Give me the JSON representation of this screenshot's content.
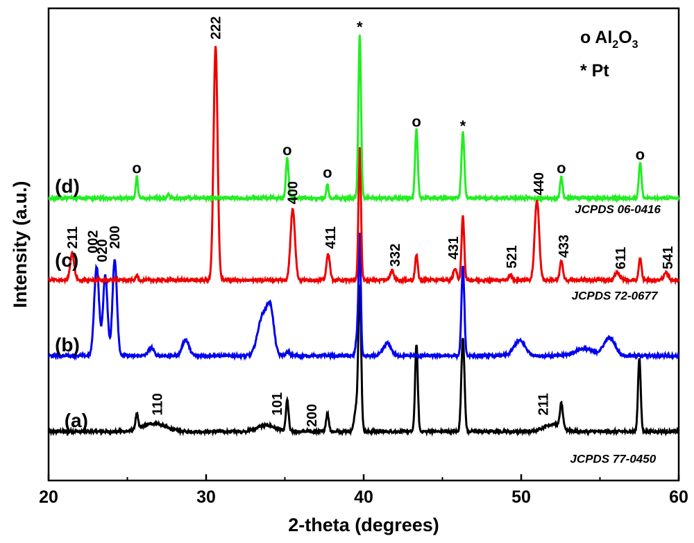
{
  "chart_data": {
    "type": "line",
    "title": "",
    "xlabel": "2-theta (degrees)",
    "ylabel": "Intensity (a.u.)",
    "xlim": [
      20,
      60
    ],
    "xticks": [
      "20",
      "30",
      "40",
      "50",
      "60"
    ],
    "yticks_shown": false,
    "grid": false,
    "legend": {
      "placement": "top-right",
      "entries": [
        {
          "symbol": "o",
          "text": "Al",
          "sub1": "2",
          "mid": "O",
          "sub2": "3"
        },
        {
          "symbol": "*",
          "text": "Pt"
        }
      ]
    },
    "series": [
      {
        "name": "(a)",
        "color": "#000000",
        "baseline": 0,
        "reference": "JCPDS 77-0450",
        "peaks": [
          {
            "x": 25.6,
            "h": 0.17,
            "w": 0.12
          },
          {
            "x": 26.7,
            "h": 0.09,
            "w": 1.0
          },
          {
            "x": 33.8,
            "h": 0.07,
            "w": 0.8
          },
          {
            "x": 35.15,
            "h": 0.35,
            "w": 0.12
          },
          {
            "x": 37.7,
            "h": 0.2,
            "w": 0.13
          },
          {
            "x": 39.75,
            "h": 1.62,
            "w": 0.13
          },
          {
            "x": 39.5,
            "h": 0.25,
            "w": 0.15
          },
          {
            "x": 43.35,
            "h": 0.98,
            "w": 0.12
          },
          {
            "x": 46.3,
            "h": 1.06,
            "w": 0.14
          },
          {
            "x": 52.0,
            "h": 0.08,
            "w": 0.8
          },
          {
            "x": 52.55,
            "h": 0.27,
            "w": 0.13
          },
          {
            "x": 57.5,
            "h": 0.83,
            "w": 0.12
          }
        ]
      },
      {
        "name": "(b)",
        "color": "#0000ee",
        "baseline": 0.85,
        "reference": "JCPDS 72-0677",
        "peaks": [
          {
            "x": 23.05,
            "h": 1.0,
            "w": 0.22
          },
          {
            "x": 23.6,
            "h": 0.9,
            "w": 0.2
          },
          {
            "x": 24.2,
            "h": 1.08,
            "w": 0.2
          },
          {
            "x": 26.5,
            "h": 0.09,
            "w": 0.25
          },
          {
            "x": 28.7,
            "h": 0.18,
            "w": 0.3
          },
          {
            "x": 33.6,
            "h": 0.45,
            "w": 0.45
          },
          {
            "x": 34.1,
            "h": 0.45,
            "w": 0.3
          },
          {
            "x": 35.2,
            "h": 0.04,
            "w": 0.2
          },
          {
            "x": 39.6,
            "h": 0.25,
            "w": 0.13
          },
          {
            "x": 39.75,
            "h": 1.3,
            "w": 0.1
          },
          {
            "x": 41.5,
            "h": 0.14,
            "w": 0.35
          },
          {
            "x": 46.3,
            "h": 1.0,
            "w": 0.13
          },
          {
            "x": 49.9,
            "h": 0.17,
            "w": 0.5
          },
          {
            "x": 54.0,
            "h": 0.08,
            "w": 0.8
          },
          {
            "x": 55.6,
            "h": 0.2,
            "w": 0.5
          }
        ]
      },
      {
        "name": "(c)",
        "color": "#ee0000",
        "baseline": 1.7,
        "reference": "JCPDS 06-0416",
        "peaks": [
          {
            "x": 21.5,
            "h": 0.3,
            "w": 0.18
          },
          {
            "x": 25.6,
            "h": 0.05,
            "w": 0.1
          },
          {
            "x": 30.6,
            "h": 2.62,
            "w": 0.18
          },
          {
            "x": 35.5,
            "h": 0.8,
            "w": 0.2
          },
          {
            "x": 37.75,
            "h": 0.3,
            "w": 0.15
          },
          {
            "x": 39.75,
            "h": 1.5,
            "w": 0.11
          },
          {
            "x": 41.8,
            "h": 0.11,
            "w": 0.15
          },
          {
            "x": 43.35,
            "h": 0.28,
            "w": 0.12
          },
          {
            "x": 45.8,
            "h": 0.13,
            "w": 0.15
          },
          {
            "x": 46.3,
            "h": 0.72,
            "w": 0.12
          },
          {
            "x": 49.3,
            "h": 0.06,
            "w": 0.15
          },
          {
            "x": 51.0,
            "h": 0.9,
            "w": 0.2
          },
          {
            "x": 52.55,
            "h": 0.22,
            "w": 0.13
          },
          {
            "x": 56.1,
            "h": 0.08,
            "w": 0.25
          },
          {
            "x": 57.55,
            "h": 0.25,
            "w": 0.12
          },
          {
            "x": 59.2,
            "h": 0.08,
            "w": 0.2
          }
        ]
      },
      {
        "name": "(d)",
        "color": "#22ee22",
        "baseline": 2.62,
        "reference": "",
        "peaks": [
          {
            "x": 25.6,
            "h": 0.24,
            "w": 0.1
          },
          {
            "x": 27.6,
            "h": 0.04,
            "w": 0.1
          },
          {
            "x": 35.15,
            "h": 0.45,
            "w": 0.12
          },
          {
            "x": 37.7,
            "h": 0.16,
            "w": 0.1
          },
          {
            "x": 39.75,
            "h": 1.82,
            "w": 0.12
          },
          {
            "x": 43.35,
            "h": 0.77,
            "w": 0.12
          },
          {
            "x": 46.3,
            "h": 0.74,
            "w": 0.13
          },
          {
            "x": 52.55,
            "h": 0.24,
            "w": 0.11
          },
          {
            "x": 57.55,
            "h": 0.4,
            "w": 0.12
          }
        ]
      }
    ],
    "peak_labels": [
      {
        "text": "110",
        "x": 27.2,
        "y": 0.18,
        "rot": -90,
        "series": "(a)"
      },
      {
        "text": "101",
        "x": 34.8,
        "y": 0.18,
        "rot": -90,
        "series": "(a)"
      },
      {
        "text": "200",
        "x": 37.0,
        "y": 0.05,
        "rot": -90,
        "series": "(a)"
      },
      {
        "text": "211",
        "x": 51.7,
        "y": 0.18,
        "rot": -90,
        "series": "(a)"
      },
      {
        "text": "002",
        "x": 23.1,
        "y": 2.0,
        "rot": -90,
        "series": "(b)"
      },
      {
        "text": "020",
        "x": 23.7,
        "y": 1.9,
        "rot": -90,
        "series": "(b)"
      },
      {
        "text": "200",
        "x": 24.5,
        "y": 2.05,
        "rot": -90,
        "series": "(b)"
      },
      {
        "text": "211",
        "x": 21.8,
        "y": 2.05,
        "rot": -90,
        "series": "(c)"
      },
      {
        "text": "222",
        "x": 30.9,
        "y": 4.4,
        "rot": -90,
        "series": "(c)"
      },
      {
        "text": "400",
        "x": 35.8,
        "y": 2.55,
        "rot": -90,
        "series": "(c)"
      },
      {
        "text": "411",
        "x": 38.2,
        "y": 2.05,
        "rot": -90,
        "series": "(c)"
      },
      {
        "text": "332",
        "x": 42.3,
        "y": 1.85,
        "rot": -90,
        "series": "(c)"
      },
      {
        "text": "431",
        "x": 46.0,
        "y": 1.93,
        "rot": -90,
        "series": "(c)"
      },
      {
        "text": "521",
        "x": 49.7,
        "y": 1.83,
        "rot": -90,
        "series": "(c)"
      },
      {
        "text": "440",
        "x": 51.4,
        "y": 2.65,
        "rot": -90,
        "series": "(c)"
      },
      {
        "text": "433",
        "x": 53.0,
        "y": 1.95,
        "rot": -90,
        "series": "(c)"
      },
      {
        "text": "611",
        "x": 56.6,
        "y": 1.82,
        "rot": -90,
        "series": "(c)"
      },
      {
        "text": "541",
        "x": 59.6,
        "y": 1.82,
        "rot": -90,
        "series": "(c)"
      }
    ],
    "markers": [
      {
        "symbol": "o",
        "x": 25.6,
        "y": 2.9
      },
      {
        "symbol": "o",
        "x": 35.15,
        "y": 3.1
      },
      {
        "symbol": "o",
        "x": 37.7,
        "y": 2.85
      },
      {
        "symbol": "*",
        "x": 39.75,
        "y": 4.48
      },
      {
        "symbol": "o",
        "x": 43.35,
        "y": 3.42
      },
      {
        "symbol": "*",
        "x": 46.3,
        "y": 3.37
      },
      {
        "symbol": "o",
        "x": 52.55,
        "y": 2.9
      },
      {
        "symbol": "o",
        "x": 57.55,
        "y": 3.05
      }
    ],
    "trace_labels": [
      {
        "text": "(a)",
        "x": 21.0,
        "y": 0.05
      },
      {
        "text": "(b)",
        "x": 20.4,
        "y": 0.9
      },
      {
        "text": "(c)",
        "x": 20.4,
        "y": 1.85
      },
      {
        "text": "(d)",
        "x": 20.4,
        "y": 2.68
      }
    ],
    "reference_labels": [
      {
        "text": "JCPDS 77-0450",
        "x": 53.1,
        "y": -0.35
      },
      {
        "text": "JCPDS 72-0677",
        "x": 53.2,
        "y": 1.48
      },
      {
        "text": "JCPDS 06-0416",
        "x": 53.4,
        "y": 2.45
      }
    ],
    "ylim": [
      -0.55,
      4.75
    ]
  }
}
